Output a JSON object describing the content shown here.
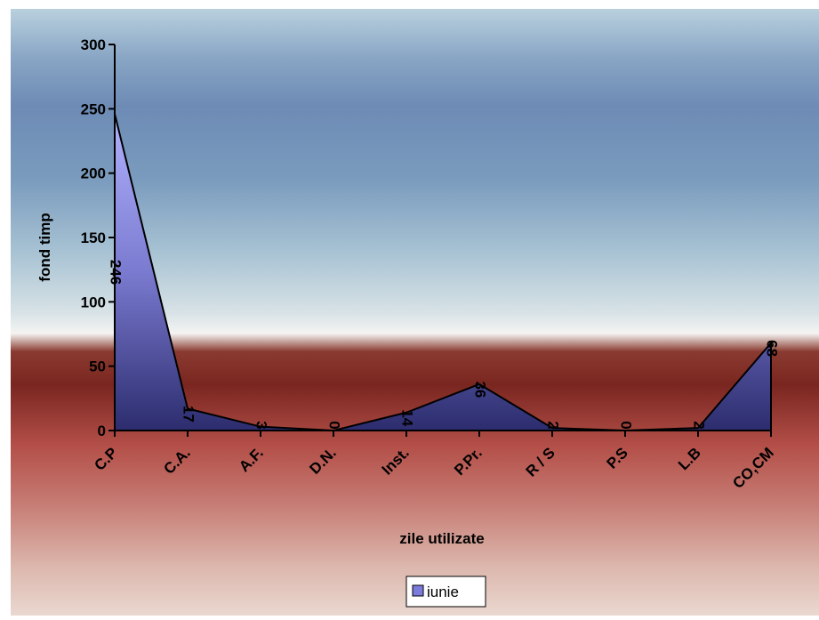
{
  "chart_data": {
    "type": "area",
    "categories": [
      "C.P",
      "C.A.",
      "A.F.",
      "D.N.",
      "Inst.",
      "P.Pr.",
      "R / S",
      "P.S",
      "L.B",
      "CO,CM"
    ],
    "series": [
      {
        "name": "iunie",
        "values": [
          246,
          17,
          3,
          0,
          14,
          36,
          2,
          0,
          2,
          68
        ],
        "labels": [
          "246",
          "17",
          "3",
          "0",
          "14",
          "36",
          "2",
          "0",
          "2",
          "68"
        ]
      }
    ],
    "title": "",
    "xlabel": "zile utilizate",
    "ylabel": "fond timp",
    "ylim": [
      0,
      300
    ],
    "yticks": [
      0,
      50,
      100,
      150,
      200,
      250,
      300
    ],
    "ytick_labels": [
      "0",
      "50",
      "100",
      "150",
      "200",
      "250",
      "300"
    ],
    "legend_position": "bottom",
    "grid": false,
    "colors": {
      "area_top": "#a8a8ff",
      "area_bottom": "#2a2a6a",
      "bg_top": "#a7c4d6",
      "bg_mid": "#6f8db5",
      "bg_dark": "#7a2a22",
      "bg_bottom": "#e6d2c8",
      "legend_swatch": "#7b7bdb"
    }
  }
}
